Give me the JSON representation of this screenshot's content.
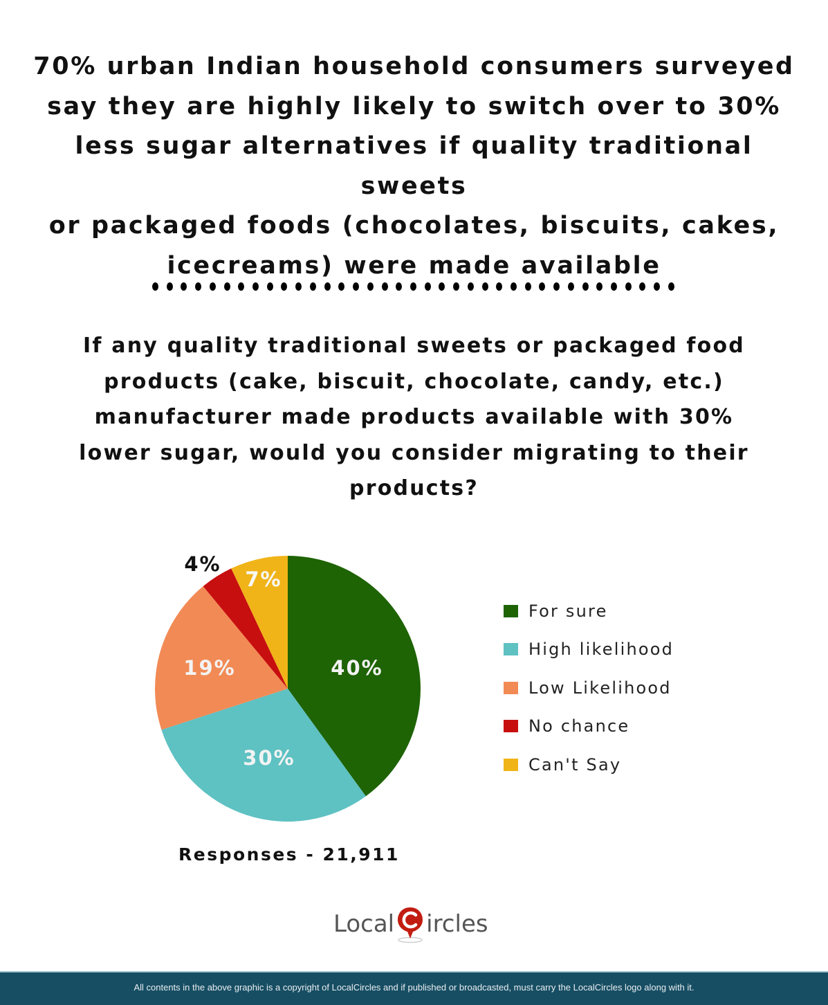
{
  "headline": "70% urban Indian household consumers surveyed say they are highly likely to switch over to 30% less sugar alternatives if quality traditional sweets or packaged foods (chocolates, biscuits, cakes, icecreams) were made available",
  "headline_lines": [
    "70% urban Indian household consumers surveyed",
    "say they are highly likely to switch over to 30%",
    "less sugar alternatives if quality traditional sweets",
    "or packaged foods (chocolates, biscuits, cakes,",
    "icecreams) were made available"
  ],
  "divider_dot_count": 37,
  "question_lines": [
    "If any quality traditional sweets or packaged food",
    "products (cake, biscuit, chocolate, candy, etc.)",
    "manufacturer made products available with 30%",
    "lower sugar, would you consider migrating to their",
    "products?"
  ],
  "chart_data": {
    "type": "pie",
    "title": "If any quality traditional sweets or packaged food products (cake, biscuit, chocolate, candy, etc.) manufacturer made products available with 30% lower sugar, would you consider migrating to their products?",
    "categories": [
      "For sure",
      "High likelihood",
      "Low Likelihood",
      "No chance",
      "Can't Say"
    ],
    "values": [
      40,
      30,
      19,
      4,
      7
    ],
    "labels": [
      "40%",
      "30%",
      "19%",
      "4%",
      "7%"
    ],
    "colors": [
      "#1e6304",
      "#5ec1c2",
      "#f28a55",
      "#c70f0f",
      "#f0b418"
    ],
    "start_angle": "12 o'clock, clockwise",
    "legend_position": "right",
    "note": "Responses - 21,911"
  },
  "legend": [
    {
      "label": "For sure",
      "color": "#1e6304"
    },
    {
      "label": "High likelihood",
      "color": "#5ec1c2"
    },
    {
      "label": "Low Likelihood",
      "color": "#f28a55"
    },
    {
      "label": "No chance",
      "color": "#c70f0f"
    },
    {
      "label": "Can't Say",
      "color": "#f0b418"
    }
  ],
  "responses": "Responses - 21,911",
  "logo": {
    "left": "Local",
    "right": "ircles",
    "mark_letter": "C"
  },
  "footer": "All contents in the above graphic is a copyright of LocalCircles and if published or broadcasted, must carry the LocalCircles logo along with it."
}
